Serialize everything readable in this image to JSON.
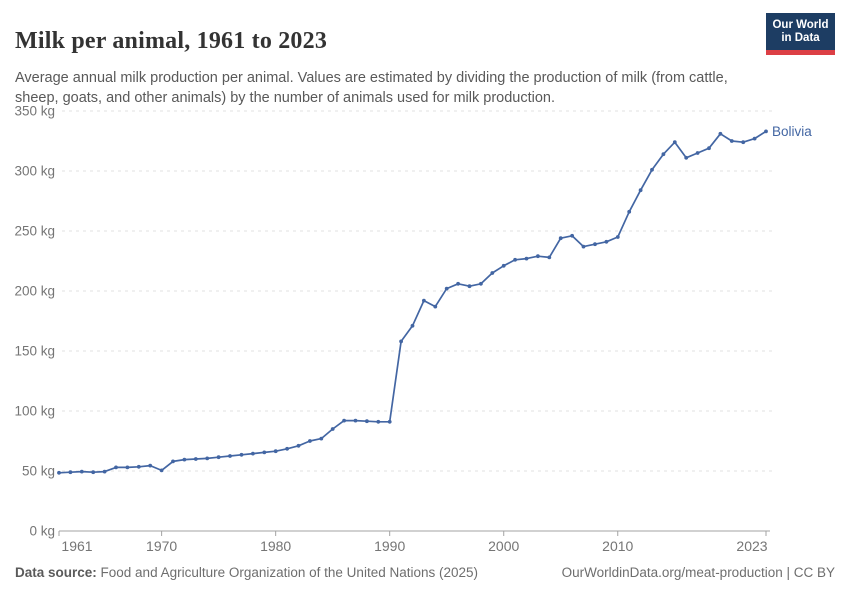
{
  "header": {
    "title": "Milk per animal, 1961 to 2023",
    "subtitle": "Average annual milk production per animal. Values are estimated by dividing the production of milk (from cattle, sheep, goats, and other animals) by the number of animals used for milk production.",
    "logo": {
      "line1": "Our World",
      "line2": "in Data",
      "bg_color": "#1d3d63",
      "bar_color": "#dc3f45"
    }
  },
  "chart_data": {
    "type": "line",
    "title": "Milk per animal, 1961 to 2023",
    "xlabel": "",
    "ylabel": "kg",
    "xlim": [
      1961,
      2023
    ],
    "ylim": [
      0,
      350
    ],
    "yticks": [
      0,
      50,
      100,
      150,
      200,
      250,
      300,
      350
    ],
    "ytick_suffix": " kg",
    "xticks": [
      1961,
      1970,
      1980,
      1990,
      2000,
      2010,
      2023
    ],
    "grid": "horizontal-dashed",
    "legend_position": "line-end-label",
    "line_color": "#4366a3",
    "grid_color": "#e2e2e2",
    "axis_color": "#a3a3a3",
    "tick_label_color": "#757575",
    "series": [
      {
        "name": "Bolivia",
        "color": "#4366a3",
        "x": [
          1961,
          1962,
          1963,
          1964,
          1965,
          1966,
          1967,
          1968,
          1969,
          1970,
          1971,
          1972,
          1973,
          1974,
          1975,
          1976,
          1977,
          1978,
          1979,
          1980,
          1981,
          1982,
          1983,
          1984,
          1985,
          1986,
          1987,
          1988,
          1989,
          1990,
          1991,
          1992,
          1993,
          1994,
          1995,
          1996,
          1997,
          1998,
          1999,
          2000,
          2001,
          2002,
          2003,
          2004,
          2005,
          2006,
          2007,
          2008,
          2009,
          2010,
          2011,
          2012,
          2013,
          2014,
          2015,
          2016,
          2017,
          2018,
          2019,
          2020,
          2021,
          2022,
          2023
        ],
        "values": [
          48.5,
          49,
          49.5,
          49,
          49.5,
          53,
          53,
          53.5,
          54.5,
          50.5,
          58,
          59.5,
          60,
          60.5,
          61.5,
          62.5,
          63.5,
          64.5,
          65.5,
          66.5,
          68.5,
          71,
          75,
          77,
          85,
          92,
          92,
          91.5,
          91,
          91,
          158,
          171,
          192,
          187,
          202,
          206,
          204,
          206,
          215,
          221,
          226,
          227,
          229,
          228,
          244,
          246,
          237,
          239,
          241,
          245,
          266,
          284,
          301,
          314,
          324,
          311,
          315,
          319,
          331,
          325,
          324,
          327,
          333
        ]
      }
    ]
  },
  "footer": {
    "source_label": "Data source:",
    "source_text": " Food and Agriculture Organization of the United Nations (2025)",
    "link_text": "OurWorldinData.org/meat-production | CC BY"
  }
}
